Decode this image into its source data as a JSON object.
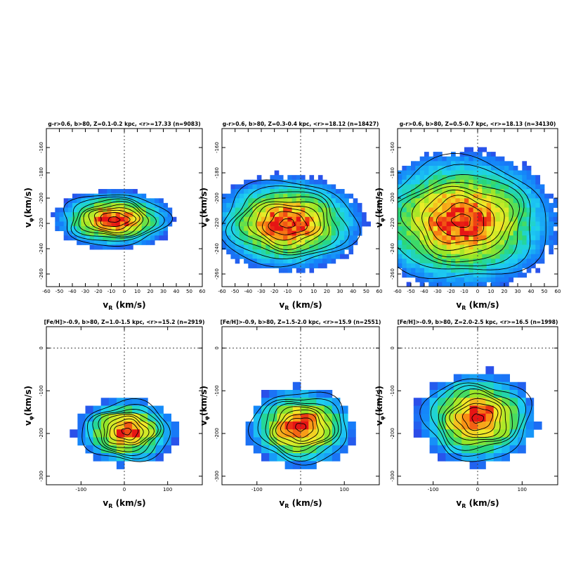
{
  "chart_data": [
    {
      "type": "heatmap",
      "title": "g-r>0.6, b>80, Z=0.1-0.2 kpc, <r>=17.33 (n=9083)",
      "xlabel": {
        "main": "v",
        "sub": "R",
        "unit": "(km/s)"
      },
      "ylabel": {
        "main": "v",
        "sub": "φ",
        "unit": "(km/s)"
      },
      "xlim": [
        -60,
        60
      ],
      "ylim": [
        -270,
        -145
      ],
      "xticks": [
        -60,
        -50,
        -40,
        -30,
        -20,
        -10,
        0,
        10,
        20,
        30,
        40,
        50,
        60
      ],
      "yticks": [
        -160,
        -180,
        -200,
        -220,
        -240,
        -260
      ],
      "peak": {
        "vR": -8,
        "vphi": -217
      },
      "spread": {
        "vR": 22,
        "vphi": 11
      },
      "reference_lines": {
        "vR": 0,
        "vphi": null
      }
    },
    {
      "type": "heatmap",
      "title": "g-r>0.6, b>80, Z=0.3-0.4 kpc, <r>=18.12 (n=18427)",
      "xlabel": {
        "main": "v",
        "sub": "R",
        "unit": "(km/s)"
      },
      "ylabel": {
        "main": "v",
        "sub": "φ",
        "unit": "(km/s)"
      },
      "xlim": [
        -60,
        60
      ],
      "ylim": [
        -270,
        -145
      ],
      "xticks": [
        -60,
        -50,
        -40,
        -30,
        -20,
        -10,
        0,
        10,
        20,
        30,
        40,
        50,
        60
      ],
      "yticks": [
        -160,
        -180,
        -200,
        -220,
        -240,
        -260
      ],
      "peak": {
        "vR": -10,
        "vphi": -220
      },
      "spread": {
        "vR": 28,
        "vphi": 18
      },
      "reference_lines": {
        "vR": 0,
        "vphi": null
      }
    },
    {
      "type": "heatmap",
      "title": "g-r>0.6, b>80, Z=0.5-0.7 kpc, <r>=18.13 (n=34130)",
      "xlabel": {
        "main": "v",
        "sub": "R",
        "unit": "(km/s)"
      },
      "ylabel": {
        "main": "v",
        "sub": "φ",
        "unit": "(km/s)"
      },
      "xlim": [
        -60,
        60
      ],
      "ylim": [
        -270,
        -145
      ],
      "xticks": [
        -60,
        -50,
        -40,
        -30,
        -20,
        -10,
        0,
        10,
        20,
        30,
        40,
        50,
        60
      ],
      "yticks": [
        -160,
        -180,
        -200,
        -220,
        -240,
        -260
      ],
      "peak": {
        "vR": -12,
        "vphi": -218
      },
      "spread": {
        "vR": 35,
        "vphi": 26
      },
      "reference_lines": {
        "vR": 0,
        "vphi": null
      }
    },
    {
      "type": "heatmap",
      "title": "[Fe/H]>-0.9, b>80, Z=1.0-1.5 kpc, <r>=15.2 (n=2919)",
      "xlabel": {
        "main": "v",
        "sub": "R",
        "unit": "(km/s)"
      },
      "ylabel": {
        "main": "v",
        "sub": "φ",
        "unit": "(km/s)"
      },
      "xlim": [
        -180,
        180
      ],
      "ylim": [
        -320,
        50
      ],
      "xticks": [
        -100,
        0,
        100
      ],
      "yticks": [
        0,
        -100,
        -200,
        -300
      ],
      "peak": {
        "vR": 5,
        "vphi": -195
      },
      "spread": {
        "vR": 55,
        "vphi": 38
      },
      "reference_lines": {
        "vR": 0,
        "vphi": 0
      }
    },
    {
      "type": "heatmap",
      "title": "[Fe/H]>-0.9, b>80, Z=1.5-2.0 kpc, <r>=15.9 (n=2551)",
      "xlabel": {
        "main": "v",
        "sub": "R",
        "unit": "(km/s)"
      },
      "ylabel": {
        "main": "v",
        "sub": "φ",
        "unit": "(km/s)"
      },
      "xlim": [
        -180,
        180
      ],
      "ylim": [
        -320,
        50
      ],
      "xticks": [
        -100,
        0,
        100
      ],
      "yticks": [
        0,
        -100,
        -200,
        -300
      ],
      "peak": {
        "vR": 0,
        "vphi": -185
      },
      "spread": {
        "vR": 60,
        "vphi": 45
      },
      "reference_lines": {
        "vR": 0,
        "vphi": 0
      }
    },
    {
      "type": "heatmap",
      "title": "[Fe/H]>-0.9, b>80, Z=2.0-2.5 kpc, <r>=16.5 (n=1998)",
      "xlabel": {
        "main": "v",
        "sub": "R",
        "unit": "(km/s)"
      },
      "ylabel": {
        "main": "v",
        "sub": "φ",
        "unit": "(km/s)"
      },
      "xlim": [
        -180,
        180
      ],
      "ylim": [
        -320,
        50
      ],
      "xticks": [
        -100,
        0,
        100
      ],
      "yticks": [
        0,
        -100,
        -200,
        -300
      ],
      "peak": {
        "vR": 0,
        "vphi": -165
      },
      "spread": {
        "vR": 65,
        "vphi": 52
      },
      "reference_lines": {
        "vR": 0,
        "vphi": 0
      }
    }
  ]
}
